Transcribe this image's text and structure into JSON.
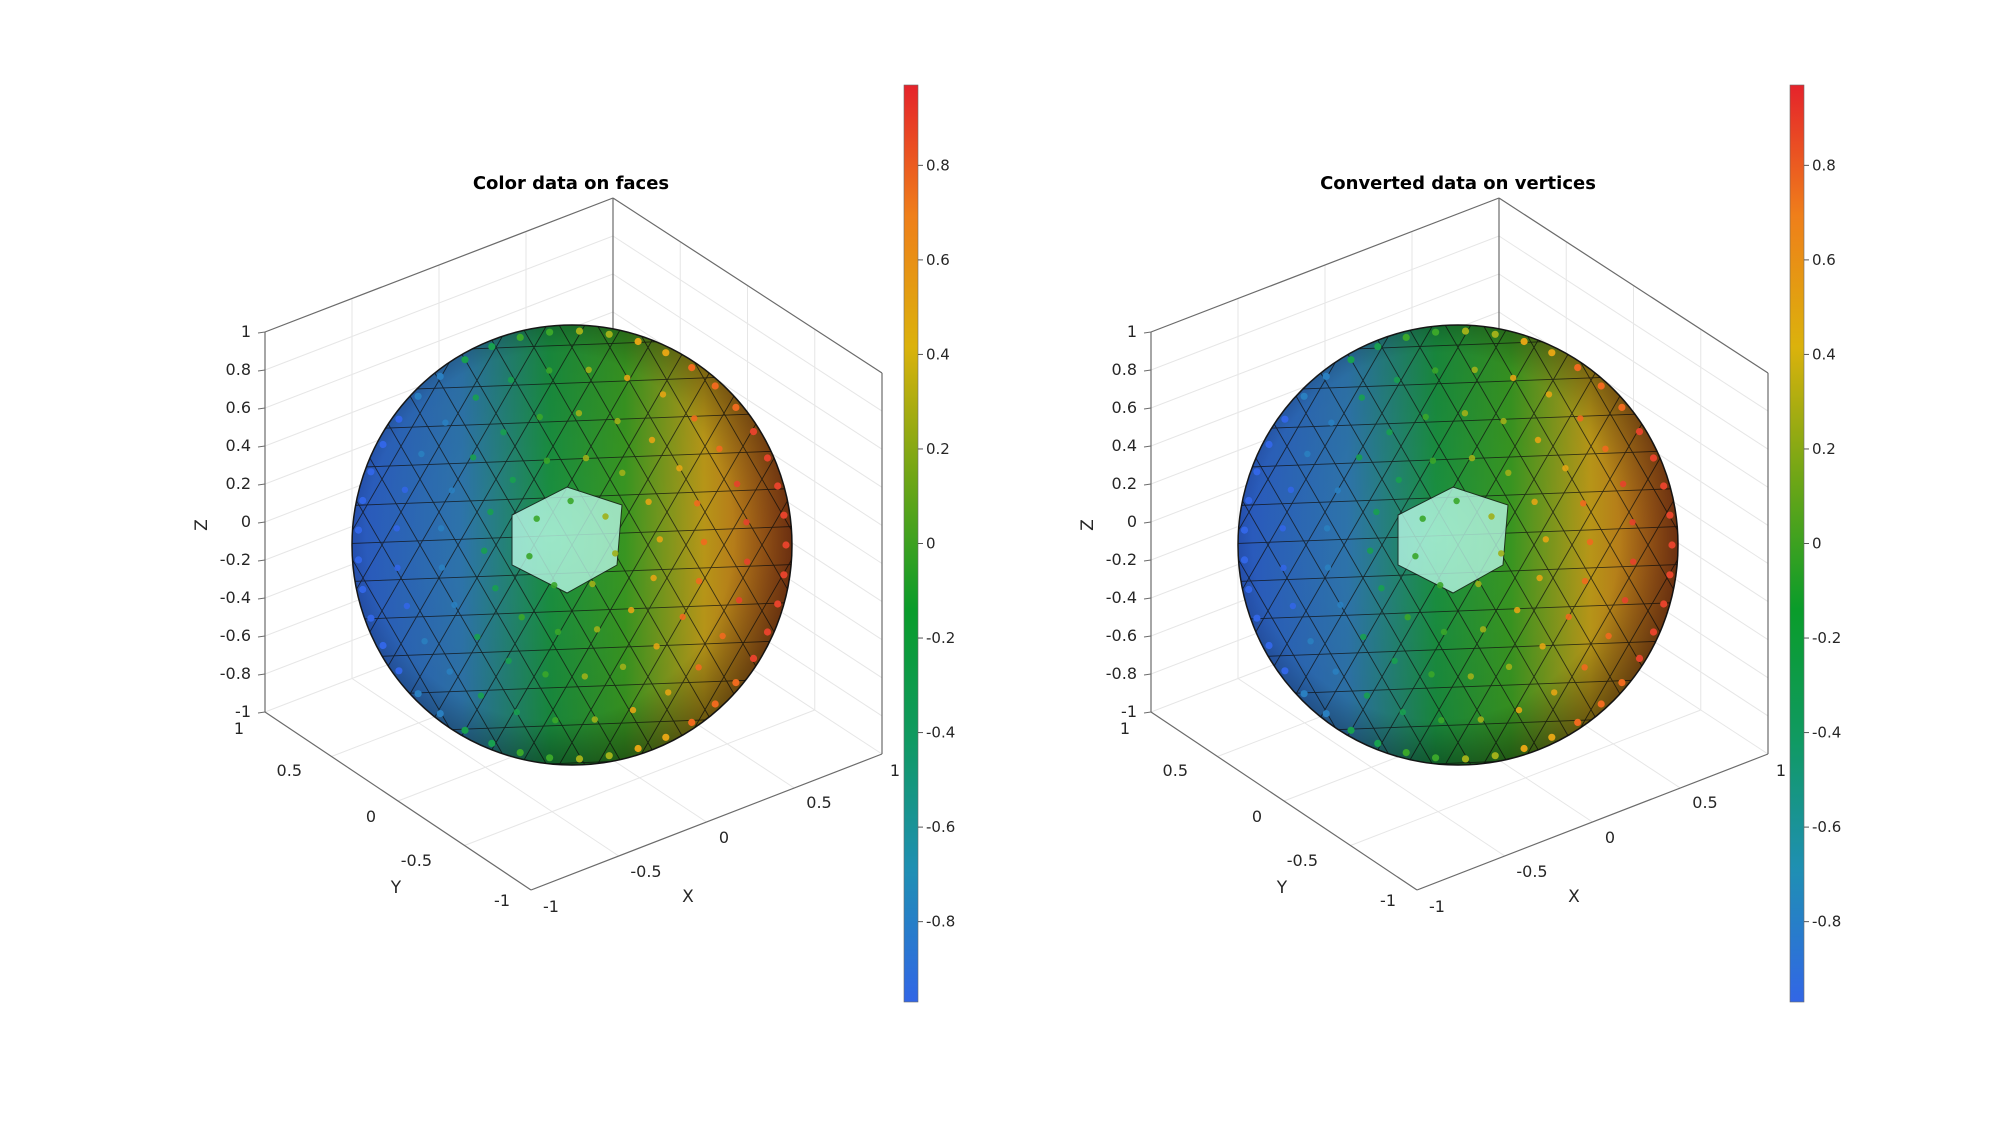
{
  "chart_data": [
    {
      "type": "surface-3d",
      "title": "Color data on faces",
      "xlabel": "X",
      "ylabel": "Y",
      "zlabel": "Z",
      "xlim": [
        -1,
        1
      ],
      "ylim": [
        -1,
        1
      ],
      "zlim": [
        -1,
        1
      ],
      "xticks": [
        "-1",
        "-0.5",
        "0",
        "0.5",
        "1"
      ],
      "yticks": [
        "-1",
        "-0.5",
        "0",
        "0.5",
        "1"
      ],
      "zticks": [
        "-1",
        "-0.8",
        "-0.6",
        "-0.4",
        "-0.2",
        "0",
        "0.2",
        "0.4",
        "0.6",
        "0.8",
        "1"
      ],
      "grid": true,
      "colorbar": {
        "ticks": [
          "-0.8",
          "-0.6",
          "-0.4",
          "-0.2",
          "0",
          "0.2",
          "0.4",
          "0.6",
          "0.8"
        ],
        "clim": [
          -0.97,
          0.97
        ],
        "colormap": [
          "#3266e6",
          "#1f8fb4",
          "#109a62",
          "#0a9c2a",
          "#6fa616",
          "#dbb20c",
          "#ef7f1a",
          "#e5232b"
        ]
      },
      "surface": "geodesic sphere, color per face, markers at face centers"
    },
    {
      "type": "surface-3d",
      "title": "Converted data on vertices",
      "xlabel": "X",
      "ylabel": "Y",
      "zlabel": "Z",
      "xlim": [
        -1,
        1
      ],
      "ylim": [
        -1,
        1
      ],
      "zlim": [
        -1,
        1
      ],
      "xticks": [
        "-1",
        "-0.5",
        "0",
        "0.5",
        "1"
      ],
      "yticks": [
        "-1",
        "-0.5",
        "0",
        "0.5",
        "1"
      ],
      "zticks": [
        "-1",
        "-0.8",
        "-0.6",
        "-0.4",
        "-0.2",
        "0",
        "0.2",
        "0.4",
        "0.6",
        "0.8",
        "1"
      ],
      "grid": true,
      "colorbar": {
        "ticks": [
          "-0.8",
          "-0.6",
          "-0.4",
          "-0.2",
          "0",
          "0.2",
          "0.4",
          "0.6",
          "0.8"
        ],
        "clim": [
          -0.97,
          0.97
        ],
        "colormap": [
          "#3266e6",
          "#1f8fb4",
          "#109a62",
          "#0a9c2a",
          "#6fa616",
          "#dbb20c",
          "#ef7f1a",
          "#e5232b"
        ]
      },
      "surface": "geodesic sphere, interpolated vertex color, markers at vertices"
    }
  ]
}
